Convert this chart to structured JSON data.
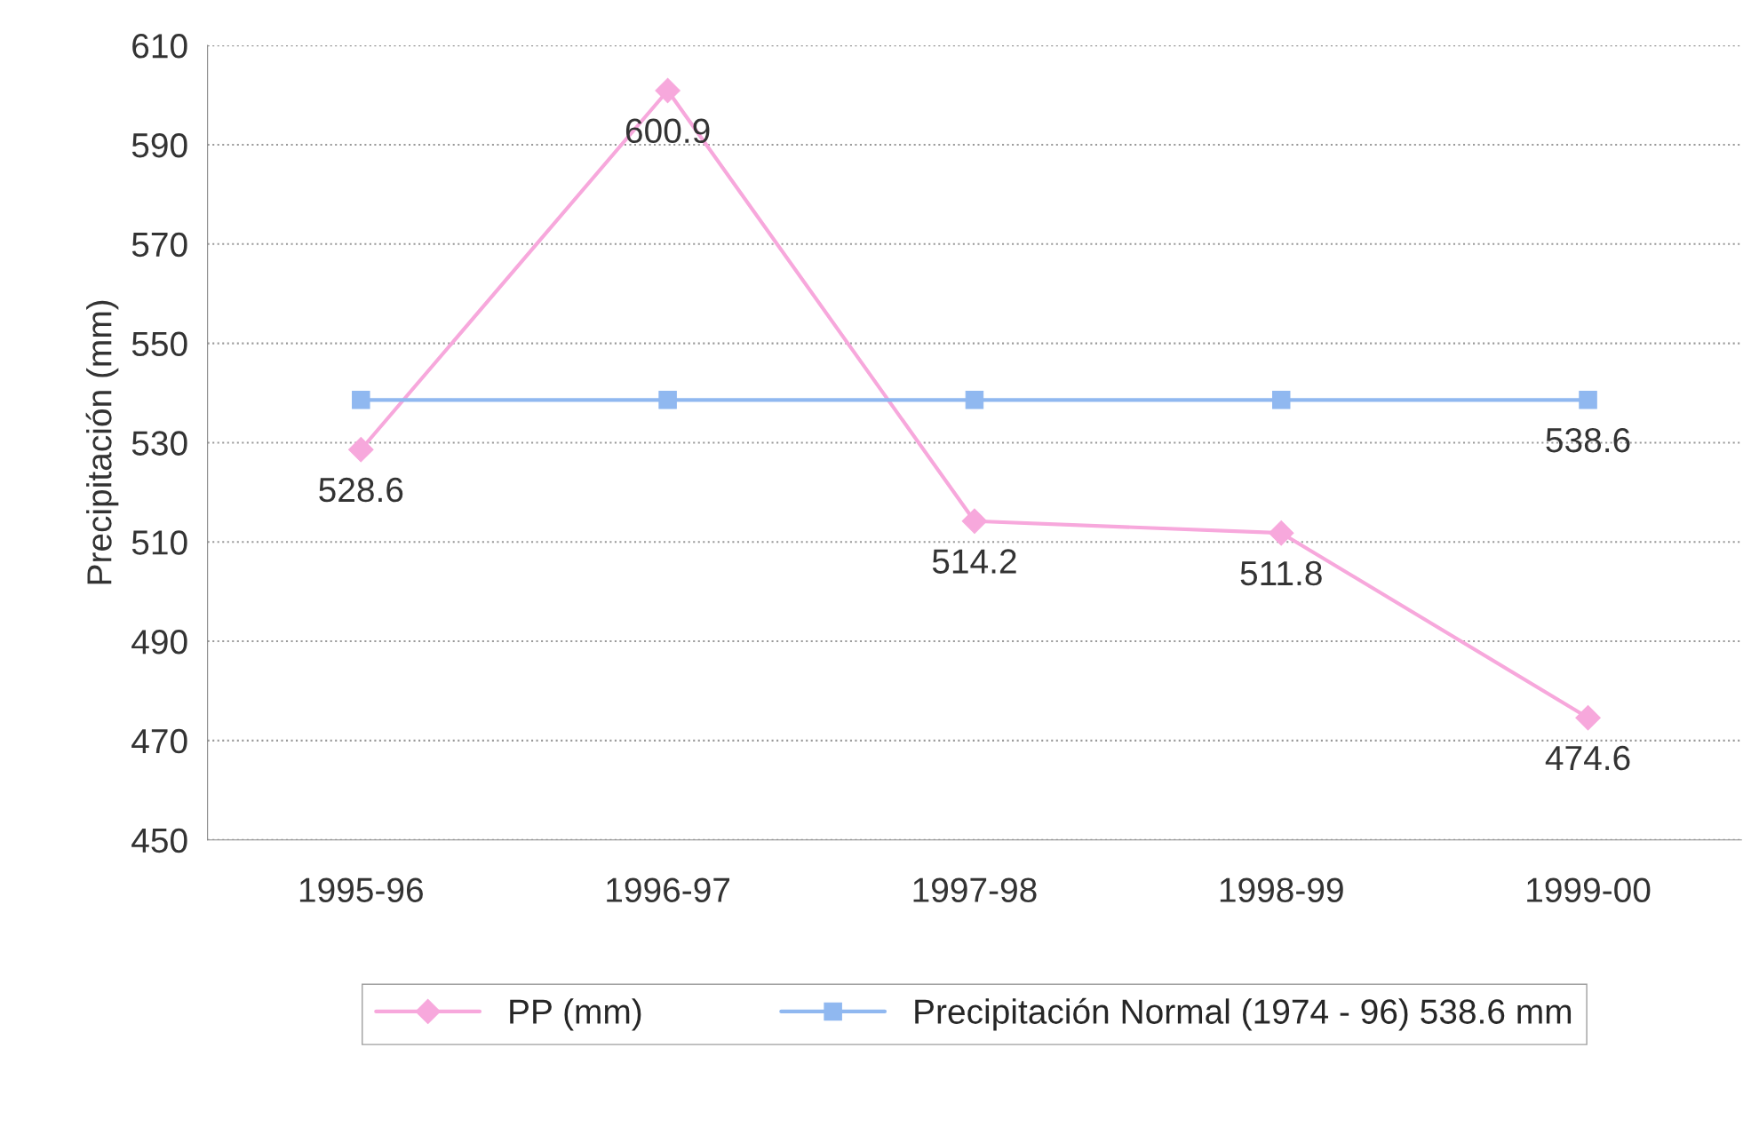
{
  "chart_data": {
    "type": "line",
    "ylabel": "Precipitación (mm)",
    "categories": [
      "1995-96",
      "1996-97",
      "1997-98",
      "1998-99",
      "1999-00"
    ],
    "series": [
      {
        "name": "PP (mm)",
        "color": "#f7a8dc",
        "marker": "diamond",
        "values": [
          528.6,
          600.9,
          514.2,
          511.8,
          474.6
        ],
        "value_labels": [
          "528.6",
          "600.9",
          "514.2",
          "511.8",
          "474.6"
        ]
      },
      {
        "name": "Precipitación Normal (1974 - 96) 538.6 mm",
        "color": "#90b8f0",
        "marker": "square",
        "values": [
          538.6,
          538.6,
          538.6,
          538.6,
          538.6
        ],
        "value_labels": [
          null,
          null,
          null,
          null,
          "538.6"
        ]
      }
    ],
    "ylim": [
      450,
      610
    ],
    "yticks": [
      450,
      470,
      490,
      510,
      530,
      550,
      570,
      590,
      610
    ],
    "grid": "y",
    "legend": "bottom",
    "line_style": "solid"
  }
}
